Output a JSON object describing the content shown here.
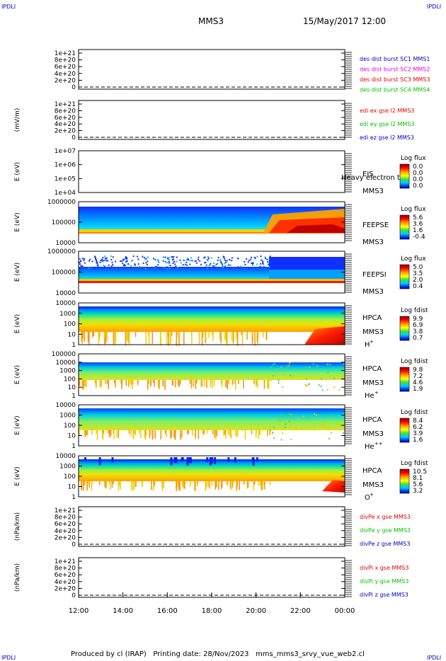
{
  "header": {
    "left_tag": "IPDLI",
    "right_tag": "IPDLI",
    "spacecraft": "MMS3",
    "datetime": "15/May/2017 12:00"
  },
  "footer": {
    "text": "Produced by cl (IRAP)   Printing date: 28/Nov/2023   mms_mms3_srvy_vue_web2.cl",
    "bottom_left_tag": "IPDLI",
    "bottom_right_tag": "IPDLI"
  },
  "colors": {
    "red": "#e00000",
    "green": "#00c000",
    "blue": "#0000c0",
    "magenta": "#e000e0"
  },
  "chart_data": {
    "type": "heatmap",
    "x_ticks": [
      "12:00",
      "14:00",
      "16:00",
      "18:00",
      "20:00",
      "22:00",
      "00:00"
    ],
    "panels": [
      {
        "kind": "line",
        "ylabel": "",
        "yticks": [
          "1e+21",
          "8e+20",
          "6e+20",
          "4e+20",
          "2e+20",
          "0"
        ],
        "legend": [
          {
            "text": "des dist burst SC1 MMS1",
            "color": "#0000c0"
          },
          {
            "text": "des dist burst SC2 MMS2",
            "color": "#e000e0"
          },
          {
            "text": "des dist burst SC3 MMS3",
            "color": "#e00000"
          },
          {
            "text": "des dist burst SC4 MMS4",
            "color": "#00c000"
          }
        ]
      },
      {
        "kind": "line",
        "ylabel": "(mV/m)",
        "yticks": [
          "1e+21",
          "8e+20",
          "6e+20",
          "4e+20",
          "2e+20",
          "0"
        ],
        "legend": [
          {
            "text": "edi ex gse l2 MMS3",
            "color": "#e00000"
          },
          {
            "text": "edi ey gse l2 MMS3",
            "color": "#00c000"
          },
          {
            "text": "edi ez gse l2 MMS3",
            "color": "#0000c0"
          }
        ]
      },
      {
        "kind": "spec",
        "ylabel": "E (eV)",
        "yticks": [
          "1e+07",
          "1e+06",
          "1e+05",
          "1e+04"
        ],
        "name": "EIS",
        "sub": "MMS3",
        "overlay": "Heavy electron to",
        "bar_title": "Log flux",
        "bar_values": [
          "0.0",
          "0.0",
          "0.0",
          "0.0"
        ]
      },
      {
        "kind": "spec",
        "ylabel": "E (eV)",
        "yticks": [
          "1000000",
          "100000",
          "10000"
        ],
        "name": "FEEPSE",
        "sub": "MMS3",
        "bar_title": "Log flux",
        "bar_values": [
          "5.6",
          "3.6",
          "1.6",
          "-0.4"
        ]
      },
      {
        "kind": "spec",
        "ylabel": "E (eV)",
        "yticks": [
          "1000000",
          "100000",
          "10000"
        ],
        "name": "FEEPSI",
        "sub": "MMS3",
        "bar_title": "Log flux",
        "bar_values": [
          "5.0",
          "3.5",
          "2.0",
          "0.4"
        ]
      },
      {
        "kind": "spec",
        "ylabel": "E (eV)",
        "yticks": [
          "10000",
          "1000",
          "100",
          "10",
          "1"
        ],
        "name": "HPCA",
        "sub": "MMS3",
        "species": "H",
        "sup": "+",
        "bar_title": "Log fdist",
        "bar_values": [
          "9.9",
          "6.9",
          "3.8",
          "0.7"
        ]
      },
      {
        "kind": "spec",
        "ylabel": "E (eV)",
        "yticks": [
          "100000",
          "10000",
          "1000",
          "100",
          "10",
          "1"
        ],
        "name": "HPCA",
        "sub": "MMS3",
        "species": "He",
        "sup": "+",
        "bar_title": "Log fdist",
        "bar_values": [
          "9.8",
          "7.2",
          "4.6",
          "1.9"
        ]
      },
      {
        "kind": "spec",
        "ylabel": "E (eV)",
        "yticks": [
          "10000",
          "1000",
          "100",
          "10",
          "1"
        ],
        "name": "HPCA",
        "sub": "MMS3",
        "species": "He",
        "sup": "++",
        "bar_title": "Log fdist",
        "bar_values": [
          "8.4",
          "6.2",
          "3.9",
          "1.6"
        ]
      },
      {
        "kind": "spec",
        "ylabel": "E (eV)",
        "yticks": [
          "10000",
          "1000",
          "100",
          "10",
          "1"
        ],
        "name": "HPCA",
        "sub": "MMS3",
        "species": "O",
        "sup": "+",
        "bar_title": "Log fdist",
        "bar_values": [
          "10.5",
          "8.1",
          "5.6",
          "3.2"
        ]
      },
      {
        "kind": "line",
        "ylabel": "(nPa/km)",
        "yticks": [
          "1e+21",
          "8e+20",
          "6e+20",
          "4e+20",
          "2e+20",
          "0"
        ],
        "legend": [
          {
            "text": "divPe x gse MMS3",
            "color": "#e00000"
          },
          {
            "text": "divPe y gse MMS3",
            "color": "#00c000"
          },
          {
            "text": "divPe z gse MMS3",
            "color": "#0000c0"
          }
        ]
      },
      {
        "kind": "line",
        "ylabel": "(nPa/km)",
        "yticks": [
          "1e+21",
          "8e+20",
          "6e+20",
          "4e+20",
          "2e+20",
          "0"
        ],
        "legend": [
          {
            "text": "divPi x gse MMS3",
            "color": "#e00000"
          },
          {
            "text": "divPi y gse MMS3",
            "color": "#00c000"
          },
          {
            "text": "divPi z gse MMS3",
            "color": "#0000c0"
          }
        ]
      }
    ]
  }
}
